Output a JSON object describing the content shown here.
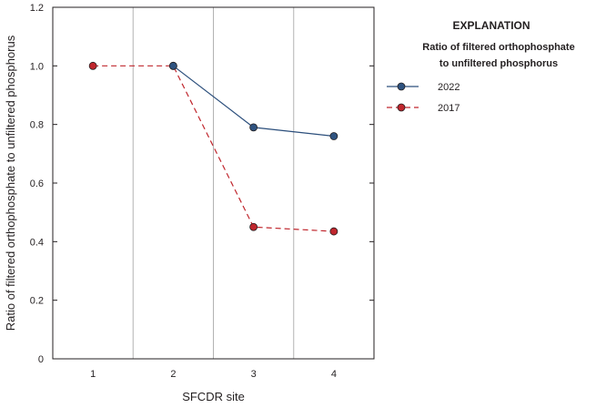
{
  "chart_data": {
    "type": "line",
    "xlabel": "SFCDR site",
    "ylabel": "Ratio of filtered orthophosphate to unfiltered phosphorus",
    "categories": [
      "1",
      "2",
      "3",
      "4"
    ],
    "xlim": [
      0.5,
      4.5
    ],
    "ylim": [
      0,
      1.2
    ],
    "yticks": [
      "0",
      "0.2",
      "0.4",
      "0.6",
      "0.8",
      "1.0",
      "1.2"
    ],
    "grid": "vertical lines between sites",
    "series": [
      {
        "name": "2022",
        "values": [
          null,
          1.0,
          0.79,
          0.76
        ],
        "color": "#2c4f7c",
        "marker_color": "#2f5380",
        "line_style": "solid"
      },
      {
        "name": "2017",
        "values": [
          1.0,
          1.0,
          0.45,
          0.435
        ],
        "color": "#c0262d",
        "marker_color": "#c0262d",
        "line_style": "dashed"
      }
    ],
    "legend": {
      "placement": "right",
      "title": "EXPLANATION",
      "subtitle_line1": "Ratio of filtered orthophosphate",
      "subtitle_line2": "to unfiltered phosphorus"
    }
  }
}
